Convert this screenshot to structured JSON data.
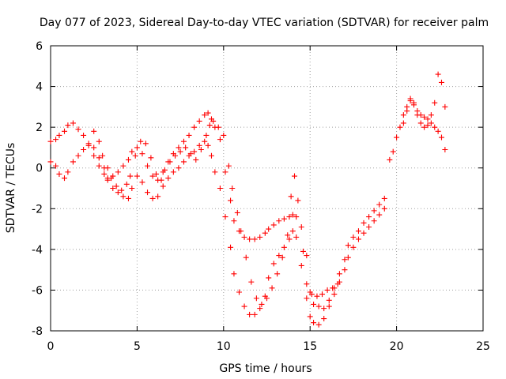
{
  "chart_data": {
    "type": "scatter",
    "title": "Day 077 of 2023, Sidereal Day-to-day VTEC variation (SDTVAR) for receiver palm",
    "xlabel": "GPS time / hours",
    "ylabel": "SDTVAR / TECUs",
    "xlim": [
      0,
      25
    ],
    "ylim": [
      -8,
      6
    ],
    "xticks": [
      0,
      5,
      10,
      15,
      20,
      25
    ],
    "yticks": [
      -8,
      -6,
      -4,
      -2,
      0,
      2,
      4,
      6
    ],
    "grid": true,
    "marker": "+",
    "color": "#ff0000",
    "series": [
      {
        "x": [
          0.0,
          0.3,
          0.5,
          0.8,
          1.0,
          1.3,
          1.6,
          1.9,
          2.2,
          2.5,
          2.8,
          3.1,
          3.3,
          3.6,
          3.9,
          4.2,
          4.5,
          4.7,
          5.0,
          5.3,
          5.6,
          5.9,
          6.2,
          6.5,
          6.8,
          7.1,
          7.4,
          7.7,
          8.0,
          8.3,
          8.6,
          8.9,
          9.1,
          9.3,
          9.5,
          9.8,
          10.1,
          10.4,
          10.6,
          10.9,
          11.2,
          11.5,
          11.8,
          12.1,
          12.4,
          12.6,
          12.9,
          13.2,
          13.5,
          13.8,
          14.0,
          14.2,
          14.5,
          14.8,
          15.0,
          15.2,
          15.5,
          15.8,
          16.1,
          16.4,
          16.7,
          17.0,
          17.2,
          17.5,
          17.8,
          18.1,
          18.4,
          18.7,
          19.0,
          19.3
        ],
        "y": [
          1.3,
          1.4,
          1.6,
          1.8,
          2.1,
          2.2,
          1.9,
          1.6,
          1.1,
          0.6,
          0.1,
          -0.3,
          -0.5,
          -0.4,
          -0.2,
          0.1,
          0.4,
          0.8,
          1.0,
          0.7,
          0.1,
          -0.4,
          -0.6,
          -0.2,
          0.3,
          0.7,
          1.0,
          1.3,
          1.6,
          2.0,
          2.3,
          2.6,
          2.7,
          2.4,
          2.0,
          1.4,
          -0.2,
          -1.6,
          -2.6,
          -3.1,
          -3.4,
          -3.5,
          -3.5,
          -3.4,
          -3.2,
          -3.0,
          -2.8,
          -2.6,
          -2.5,
          -2.4,
          -2.3,
          -2.4,
          -2.9,
          -4.3,
          -6.1,
          -6.7,
          -6.8,
          -6.9,
          -6.5,
          -5.9,
          -5.2,
          -4.5,
          -3.8,
          -3.4,
          -3.1,
          -2.7,
          -2.4,
          -2.1,
          -1.8,
          -1.5
        ]
      },
      {
        "x": [
          0.0,
          0.3,
          0.5,
          0.8,
          1.0,
          1.3,
          1.6,
          1.9,
          2.2,
          2.5,
          2.8,
          3.1,
          3.3,
          3.6,
          3.9,
          4.2,
          4.5,
          4.7,
          5.0,
          5.3,
          5.6,
          5.9,
          6.2,
          6.5,
          6.8,
          7.1,
          7.4,
          7.7,
          8.0,
          8.3,
          8.6,
          8.9,
          9.1,
          9.3,
          9.5,
          9.8,
          10.1,
          10.4,
          10.6,
          10.9,
          11.2,
          11.5,
          11.8,
          12.1,
          12.4,
          12.6,
          12.9,
          13.2,
          13.5,
          13.8,
          14.0,
          14.2,
          14.5,
          14.8,
          15.0,
          15.2,
          15.5,
          15.8,
          16.1,
          16.4,
          16.7,
          17.0,
          17.2,
          17.5,
          17.8,
          18.1,
          18.4,
          18.7,
          19.0,
          19.3
        ],
        "y": [
          0.3,
          0.1,
          -0.3,
          -0.5,
          -0.2,
          0.3,
          0.6,
          0.9,
          1.2,
          1.0,
          0.5,
          0.0,
          -0.6,
          -1.0,
          -1.2,
          -1.4,
          -1.5,
          -1.0,
          -0.4,
          -0.7,
          -1.2,
          -1.5,
          -1.4,
          -0.9,
          -0.5,
          -0.2,
          0.0,
          0.3,
          0.6,
          0.8,
          1.1,
          1.3,
          1.1,
          0.6,
          -0.2,
          -1.0,
          -2.4,
          -3.9,
          -5.2,
          -6.1,
          -6.8,
          -7.2,
          -7.2,
          -6.9,
          -6.3,
          -5.4,
          -4.7,
          -4.3,
          -3.9,
          -3.5,
          -3.1,
          -3.4,
          -4.8,
          -6.4,
          -7.3,
          -7.6,
          -7.7,
          -7.4,
          -6.8,
          -6.2,
          -5.6,
          -5.0,
          -4.4,
          -3.9,
          -3.5,
          -3.2,
          -2.9,
          -2.6,
          -2.3,
          -2.0
        ]
      },
      {
        "x": [
          2.5,
          2.8,
          3.0,
          3.3,
          3.5,
          3.8,
          4.1,
          4.4,
          4.6,
          4.9,
          5.2,
          5.5,
          5.8,
          6.1,
          6.4,
          6.6,
          6.9,
          7.2,
          7.5,
          7.8,
          8.1,
          8.4,
          8.7,
          9.0,
          9.2,
          9.4,
          9.7,
          10.0,
          10.3,
          10.5,
          10.8,
          11.0,
          11.3,
          11.6,
          11.9,
          12.2,
          12.5,
          12.8,
          13.1,
          13.4,
          13.7,
          13.9,
          14.1,
          14.3,
          14.6,
          14.8,
          15.1,
          15.4,
          15.7,
          16.0,
          16.3,
          16.6
        ],
        "y": [
          1.8,
          1.3,
          0.6,
          0.0,
          -0.5,
          -0.9,
          -1.1,
          -0.8,
          -0.4,
          0.6,
          1.3,
          1.2,
          0.5,
          -0.3,
          -0.6,
          -0.1,
          0.3,
          0.6,
          0.8,
          1.0,
          0.7,
          0.4,
          0.9,
          1.6,
          2.1,
          2.3,
          2.0,
          1.6,
          0.1,
          -1.0,
          -2.2,
          -3.1,
          -4.4,
          -5.6,
          -6.4,
          -6.7,
          -6.4,
          -5.9,
          -5.2,
          -4.4,
          -3.3,
          -1.4,
          -0.4,
          -1.6,
          -4.1,
          -5.7,
          -6.2,
          -6.3,
          -6.2,
          -6.0,
          -5.9,
          -5.7
        ]
      },
      {
        "x": [
          19.6,
          19.8,
          20.0,
          20.2,
          20.4,
          20.6,
          20.8,
          21.0,
          21.2,
          21.4,
          21.6,
          21.8,
          22.0,
          22.2,
          22.4,
          22.6,
          22.8
        ],
        "y": [
          0.4,
          0.8,
          1.5,
          2.0,
          2.6,
          3.0,
          3.3,
          3.1,
          2.8,
          2.6,
          2.5,
          2.4,
          2.2,
          2.0,
          1.8,
          1.5,
          0.9
        ]
      },
      {
        "x": [
          20.4,
          20.6,
          20.8,
          21.0,
          21.2,
          21.4,
          21.6,
          21.8,
          22.0,
          22.2,
          22.4,
          22.6,
          22.8
        ],
        "y": [
          2.2,
          2.8,
          3.4,
          3.2,
          2.6,
          2.2,
          2.0,
          2.1,
          2.6,
          3.2,
          4.6,
          4.2,
          3.0
        ]
      }
    ]
  }
}
